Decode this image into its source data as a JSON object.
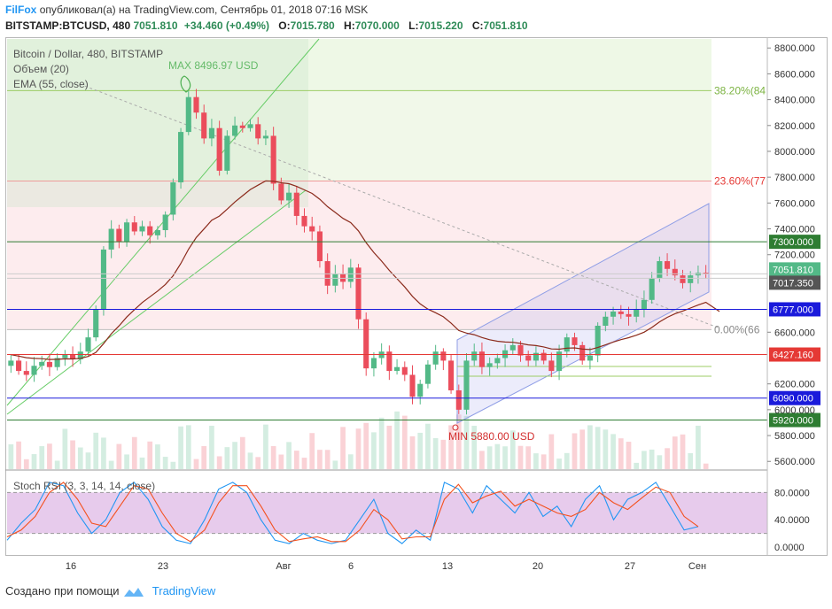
{
  "header": {
    "author": "FilFox",
    "published_text": "опубликовал(а) на TradingView.com, Сентябрь 01, 2018 07:16 MSK",
    "symbol": "BITSTAMP:BTCUSD, 480",
    "last": "7051.810",
    "change": "+34.460 (+0.49%)",
    "o_label": "O:",
    "o_value": "7015.780",
    "h_label": "H:",
    "h_value": "7070.000",
    "l_label": "L:",
    "l_value": "7015.220",
    "c_label": "C:",
    "c_value": "7051.810"
  },
  "legend": {
    "title": "Bitcoin / Dollar, 480, BITSTAMP",
    "volume": "Объем (20)",
    "ema": "EMA (55, close)",
    "stoch": "Stoch RSI (3, 3, 14, 14, close)"
  },
  "annotations": {
    "max_label": "MAX 8496.97 USD",
    "min_label": "MIN 5880.00 USD",
    "fib_382": "38.20%(84",
    "fib_236": "23.60%(77",
    "fib_0": "0.00%(66"
  },
  "footer": {
    "created_with": "Создано при помощи",
    "brand": "TradingView"
  },
  "colors": {
    "up": "#53b987",
    "down": "#eb4d5c",
    "ema": "#8b2a1b",
    "hline_green": "#2e7d32",
    "hline_blue": "#1a1adb",
    "hline_red": "#e53935",
    "stoch_k": "#2196f3",
    "stoch_d": "#f4511e",
    "stoch_band": "#e1bee7"
  },
  "chart_data": {
    "type": "candlestick",
    "title": "Bitcoin / Dollar, 480, BITSTAMP",
    "price_axis": {
      "ticks": [
        "8800.000",
        "8600.000",
        "8400.000",
        "8200.000",
        "8000.000",
        "7800.000",
        "7600.000",
        "7400.000",
        "7200.000",
        "7000.000",
        "6800.000",
        "6600.000",
        "6400.000",
        "6200.000",
        "6000.000",
        "5800.000",
        "5600.000"
      ],
      "range": [
        5540,
        8870
      ]
    },
    "x_axis": {
      "ticks": [
        "16",
        "23",
        "Авг",
        "6",
        "13",
        "20",
        "27",
        "Сен"
      ]
    },
    "horizontal_levels": [
      {
        "value": 7300.0,
        "label": "7300.000",
        "color": "hline_green"
      },
      {
        "value": 6777.0,
        "label": "6777.000",
        "color": "hline_blue"
      },
      {
        "value": 6427.16,
        "label": "6427.160",
        "color": "hline_red"
      },
      {
        "value": 6090.0,
        "label": "6090.000",
        "color": "hline_blue"
      },
      {
        "value": 5920.0,
        "label": "5920.000",
        "color": "hline_green"
      }
    ],
    "price_tags": [
      {
        "value": 7051.81,
        "label": "7051.810",
        "bg": "#53b987"
      },
      {
        "value": 7017.35,
        "label": "7017.350",
        "bg": "#555555"
      }
    ],
    "fibonacci": [
      {
        "level": "38.20%",
        "value": 8470
      },
      {
        "level": "23.60%",
        "value": 7770
      },
      {
        "level": "0.00%",
        "value": 6620
      }
    ],
    "max": 8496.97,
    "min": 5880.0,
    "close_path": [
      6380,
      6300,
      6270,
      6340,
      6370,
      6330,
      6400,
      6430,
      6390,
      6450,
      6560,
      6780,
      7240,
      7400,
      7300,
      7450,
      7380,
      7420,
      7350,
      7390,
      7510,
      7760,
      8150,
      8420,
      8300,
      8100,
      8180,
      7850,
      8120,
      8200,
      8180,
      8210,
      8100,
      8120,
      7750,
      7620,
      7680,
      7500,
      7420,
      7380,
      7150,
      6960,
      7050,
      6990,
      7100,
      6700,
      6320,
      6400,
      6450,
      6300,
      6330,
      6270,
      6100,
      6200,
      6350,
      6450,
      6380,
      6150,
      6000,
      6380,
      6450,
      6330,
      6360,
      6400,
      6460,
      6500,
      6420,
      6380,
      6440,
      6380,
      6300,
      6450,
      6560,
      6500,
      6380,
      6420,
      6650,
      6720,
      6760,
      6740,
      6720,
      6780,
      6850,
      7020,
      7150,
      7090,
      7040,
      6980,
      7040,
      7060,
      7051.81
    ],
    "ema55": {
      "start": 6430,
      "end": 6760
    },
    "stoch_rsi": {
      "levels": [
        80,
        20
      ],
      "axis_ticks": [
        "80.0000",
        "40.0000",
        "0.0000"
      ],
      "k": [
        10,
        35,
        55,
        95,
        90,
        50,
        20,
        40,
        80,
        95,
        70,
        30,
        10,
        5,
        40,
        85,
        95,
        80,
        40,
        10,
        5,
        20,
        10,
        5,
        10,
        40,
        70,
        20,
        5,
        25,
        10,
        95,
        85,
        50,
        90,
        70,
        50,
        80,
        45,
        60,
        30,
        70,
        90,
        40,
        70,
        80,
        95,
        60,
        25,
        30
      ],
      "d": [
        15,
        25,
        45,
        80,
        95,
        70,
        35,
        30,
        60,
        90,
        85,
        50,
        20,
        8,
        25,
        65,
        90,
        90,
        60,
        25,
        8,
        12,
        15,
        8,
        8,
        25,
        55,
        40,
        12,
        15,
        15,
        70,
        92,
        65,
        75,
        82,
        60,
        70,
        60,
        50,
        45,
        55,
        80,
        65,
        55,
        72,
        88,
        80,
        45,
        30
      ]
    }
  }
}
